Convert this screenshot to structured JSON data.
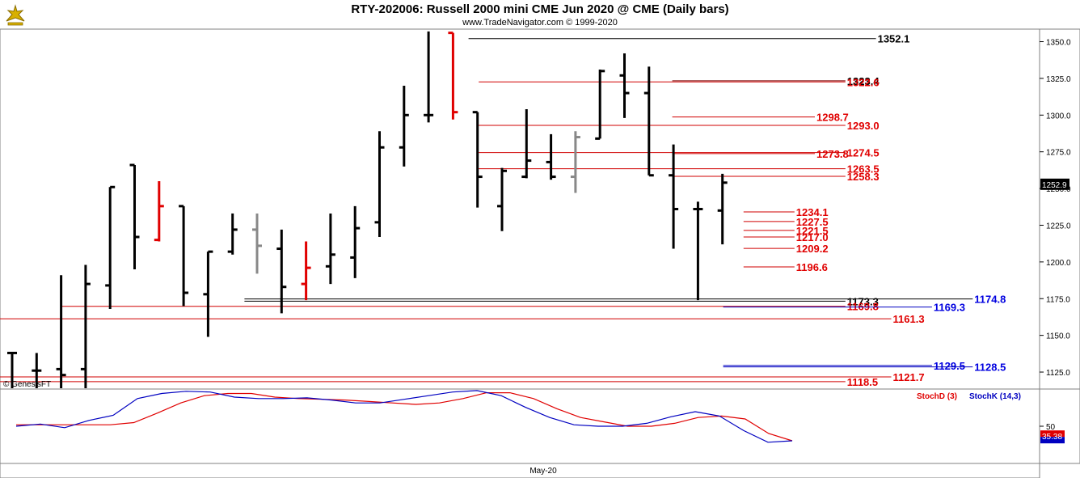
{
  "header": {
    "title": "RTY-202006:  Russell 2000 mini CME Jun 2020 @ CME  (Daily bars)",
    "subtitle": "www.TradeNavigator.com © 1999-2020",
    "watermark": "© GenesisFT"
  },
  "chart_data": [
    {
      "type": "ohlc",
      "ylim": [
        1114,
        1358
      ],
      "yticks": [
        "1125.0",
        "1150.0",
        "1175.0",
        "1200.0",
        "1225.0",
        "1250.0",
        "1275.0",
        "1300.0",
        "1325.0",
        "1350.0"
      ],
      "xlabel_tick": "May-20",
      "last_price_label": "1252.9",
      "bar_colors": {
        "up": "#000000",
        "down": "#000000",
        "red": "#e00000",
        "gray": "#888888",
        "green": "#00c000"
      },
      "bars": [
        {
          "o": 1138,
          "h": 1138,
          "l": 1114,
          "c": 1138,
          "color": "black"
        },
        {
          "o": 1126,
          "h": 1138,
          "l": 1114,
          "c": 1126,
          "color": "black"
        },
        {
          "o": 1127,
          "h": 1191,
          "l": 1114,
          "c": 1123,
          "color": "black"
        },
        {
          "o": 1127,
          "h": 1198,
          "l": 1114,
          "c": 1185,
          "color": "black"
        },
        {
          "o": 1184,
          "h": 1251,
          "l": 1168,
          "c": 1251,
          "color": "black"
        },
        {
          "o": 1266,
          "h": 1266,
          "l": 1195,
          "c": 1217,
          "color": "black"
        },
        {
          "o": 1215,
          "h": 1255,
          "l": 1214,
          "c": 1238,
          "color": "red"
        },
        {
          "o": 1238,
          "h": 1238,
          "l": 1170,
          "c": 1179,
          "color": "black"
        },
        {
          "o": 1178,
          "h": 1207,
          "l": 1149,
          "c": 1207,
          "color": "black"
        },
        {
          "o": 1207,
          "h": 1233,
          "l": 1205,
          "c": 1222,
          "color": "black"
        },
        {
          "o": 1222,
          "h": 1233,
          "l": 1192,
          "c": 1211,
          "color": "gray"
        },
        {
          "o": 1209,
          "h": 1222,
          "l": 1165,
          "c": 1183,
          "color": "black"
        },
        {
          "o": 1185,
          "h": 1214,
          "l": 1174,
          "c": 1196,
          "color": "red"
        },
        {
          "o": 1197,
          "h": 1233,
          "l": 1185,
          "c": 1205,
          "color": "black"
        },
        {
          "o": 1203,
          "h": 1238,
          "l": 1189,
          "c": 1223,
          "color": "black"
        },
        {
          "o": 1227,
          "h": 1289,
          "l": 1217,
          "c": 1278,
          "color": "black"
        },
        {
          "o": 1278,
          "h": 1320,
          "l": 1265,
          "c": 1300,
          "color": "black"
        },
        {
          "o": 1300,
          "h": 1357,
          "l": 1295,
          "c": 1300,
          "color": "black"
        },
        {
          "o": 1356,
          "h": 1356,
          "l": 1297,
          "c": 1302,
          "color": "red"
        },
        {
          "o": 1302,
          "h": 1302,
          "l": 1237,
          "c": 1258,
          "color": "black"
        },
        {
          "o": 1238,
          "h": 1264,
          "l": 1221,
          "c": 1262,
          "color": "black"
        },
        {
          "o": 1258,
          "h": 1304,
          "l": 1257,
          "c": 1269,
          "color": "black"
        },
        {
          "o": 1268,
          "h": 1287,
          "l": 1256,
          "c": 1258,
          "color": "black"
        },
        {
          "o": 1258,
          "h": 1289,
          "l": 1247,
          "c": 1285,
          "color": "gray"
        },
        {
          "o": 1284,
          "h": 1331,
          "l": 1284,
          "c": 1330,
          "color": "black"
        },
        {
          "o": 1327,
          "h": 1342,
          "l": 1298,
          "c": 1315,
          "color": "black"
        },
        {
          "o": 1315,
          "h": 1333,
          "l": 1259,
          "c": 1259,
          "color": "black"
        },
        {
          "o": 1259,
          "h": 1280,
          "l": 1209,
          "c": 1236,
          "color": "black"
        },
        {
          "o": 1236,
          "h": 1241,
          "l": 1174,
          "c": 1236,
          "color": "black"
        },
        {
          "o": 1235,
          "h": 1260,
          "l": 1212,
          "c": 1254,
          "color": "black"
        }
      ],
      "levels": [
        {
          "value": 1352.1,
          "label": "1352.1",
          "color": "#000000",
          "label_color": "#000000",
          "x_from": 0.46,
          "x_to": 0.86
        },
        {
          "value": 1323.4,
          "label": "1323.4",
          "color": "#7a0000",
          "label_color": "#000000",
          "x_from": 0.66,
          "x_to": 0.83
        },
        {
          "value": 1322.6,
          "label": "1322.6",
          "color": "#d00000",
          "label_color": "#e00000",
          "x_from": 0.47,
          "x_to": 0.83
        },
        {
          "value": 1298.7,
          "label": "1298.7",
          "color": "#d00000",
          "label_color": "#e00000",
          "x_from": 0.66,
          "x_to": 0.8
        },
        {
          "value": 1293.0,
          "label": "1293.0",
          "color": "#d00000",
          "label_color": "#e00000",
          "x_from": 0.47,
          "x_to": 0.83
        },
        {
          "value": 1273.8,
          "label": "1273.8",
          "color": "#d00000",
          "label_color": "#e00000",
          "x_from": 0.66,
          "x_to": 0.8
        },
        {
          "value": 1274.5,
          "label": "1274.5",
          "color": "#d00000",
          "label_color": "#e00000",
          "x_from": 0.47,
          "x_to": 0.83
        },
        {
          "value": 1263.5,
          "label": "1263.5",
          "color": "#d00000",
          "label_color": "#e00000",
          "x_from": 0.47,
          "x_to": 0.83
        },
        {
          "value": 1258.3,
          "label": "1258.3",
          "color": "#d00000",
          "label_color": "#e00000",
          "x_from": 0.66,
          "x_to": 0.83
        },
        {
          "value": 1234.1,
          "label": "1234.1",
          "color": "#d00000",
          "label_color": "#e00000",
          "x_from": 0.73,
          "x_to": 0.78
        },
        {
          "value": 1227.5,
          "label": "1227.5",
          "color": "#d00000",
          "label_color": "#e00000",
          "x_from": 0.73,
          "x_to": 0.78
        },
        {
          "value": 1221.5,
          "label": "1221.5",
          "color": "#d00000",
          "label_color": "#e00000",
          "x_from": 0.73,
          "x_to": 0.78
        },
        {
          "value": 1217.0,
          "label": "1217.0",
          "color": "#d00000",
          "label_color": "#e00000",
          "x_from": 0.73,
          "x_to": 0.78
        },
        {
          "value": 1209.2,
          "label": "1209.2",
          "color": "#d00000",
          "label_color": "#e00000",
          "x_from": 0.73,
          "x_to": 0.78
        },
        {
          "value": 1196.6,
          "label": "1196.6",
          "color": "#d00000",
          "label_color": "#e00000",
          "x_from": 0.73,
          "x_to": 0.78
        },
        {
          "value": 1174.8,
          "label": "1174.8",
          "color": "#000000",
          "label_color": "#0000e0",
          "x_from": 0.24,
          "x_to": 0.955
        },
        {
          "value": 1173.3,
          "label": "1173.3",
          "color": "#000000",
          "label_color": "#000000",
          "x_from": 0.24,
          "x_to": 0.83
        },
        {
          "value": 1169.8,
          "label": "1169.8",
          "color": "#d00000",
          "label_color": "#e00000",
          "x_from": 0.06,
          "x_to": 0.83
        },
        {
          "value": 1169.3,
          "label": "1169.3",
          "color": "#0000c0",
          "label_color": "#0000e0",
          "x_from": 0.71,
          "x_to": 0.915
        },
        {
          "value": 1161.3,
          "label": "1161.3",
          "color": "#d00000",
          "label_color": "#e00000",
          "x_from": 0.0,
          "x_to": 0.875
        },
        {
          "value": 1129.5,
          "label": "1129.5",
          "color": "#0000c0",
          "label_color": "#0000e0",
          "x_from": 0.71,
          "x_to": 0.915
        },
        {
          "value": 1128.5,
          "label": "1128.5",
          "color": "#0000c0",
          "label_color": "#0000e0",
          "x_from": 0.71,
          "x_to": 0.955
        },
        {
          "value": 1121.7,
          "label": "1121.7",
          "color": "#d00000",
          "label_color": "#e00000",
          "x_from": 0.0,
          "x_to": 0.875
        },
        {
          "value": 1118.5,
          "label": "1118.5",
          "color": "#d00000",
          "label_color": "#e00000",
          "x_from": 0.0,
          "x_to": 0.83
        }
      ]
    },
    {
      "type": "line",
      "ylim": [
        0,
        100
      ],
      "yticks": [
        "50"
      ],
      "last_value_label": "35.38",
      "legend": [
        "StochD (3)",
        "StochK (14,3)"
      ],
      "series": [
        {
          "name": "StochD (3)",
          "color": "#e00000",
          "values": [
            52,
            52,
            52,
            52,
            52,
            55,
            68,
            82,
            92,
            95,
            95,
            90,
            88,
            87,
            86,
            84,
            82,
            80,
            82,
            88,
            96,
            96,
            88,
            74,
            62,
            56,
            50,
            50,
            54,
            62,
            64,
            60,
            40,
            30
          ]
        },
        {
          "name": "StochK (14,3)",
          "color": "#0000c0",
          "values": [
            50,
            53,
            48,
            58,
            65,
            88,
            95,
            98,
            97,
            90,
            88,
            88,
            89,
            86,
            82,
            82,
            87,
            92,
            97,
            99,
            92,
            76,
            62,
            52,
            50,
            50,
            54,
            63,
            70,
            64,
            44,
            28,
            30
          ]
        }
      ]
    }
  ]
}
